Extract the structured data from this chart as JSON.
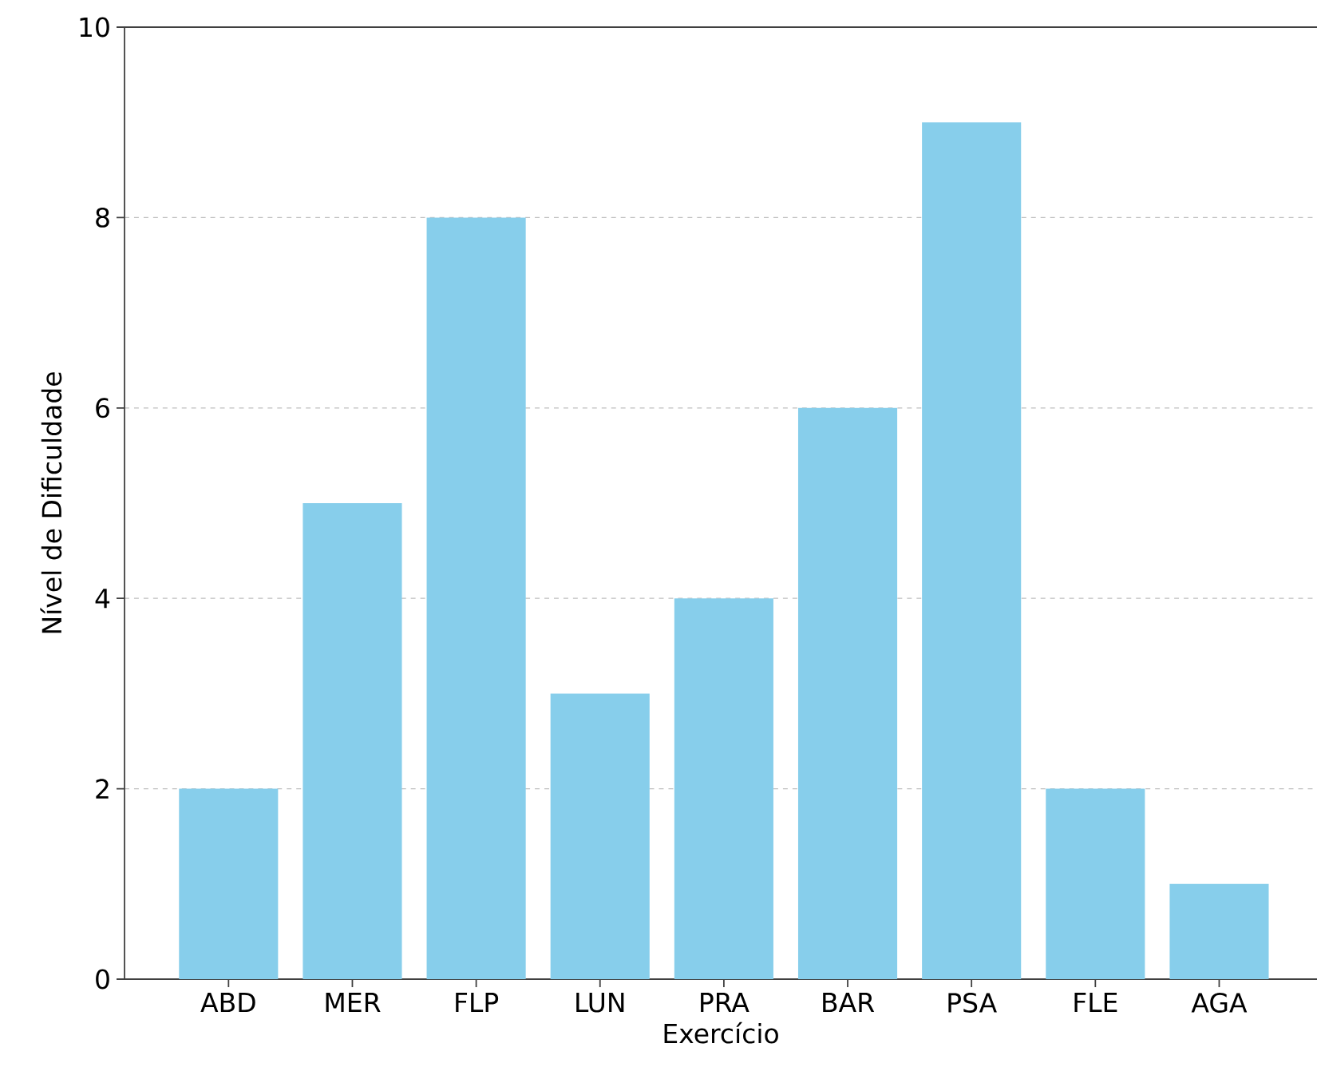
{
  "chart_data": {
    "type": "bar",
    "xlabel": "Exercício",
    "ylabel": "Nível de Dificuldade",
    "categories": [
      "ABD",
      "MER",
      "FLP",
      "LUN",
      "PRA",
      "BAR",
      "PSA",
      "FLE",
      "AGA"
    ],
    "values": [
      2,
      5,
      8,
      3,
      4,
      6,
      9,
      2,
      1
    ],
    "color": "#87ceeb",
    "ylim": [
      0,
      10
    ],
    "yticks": [
      0,
      2,
      4,
      6,
      8,
      10
    ],
    "grid": "y"
  }
}
